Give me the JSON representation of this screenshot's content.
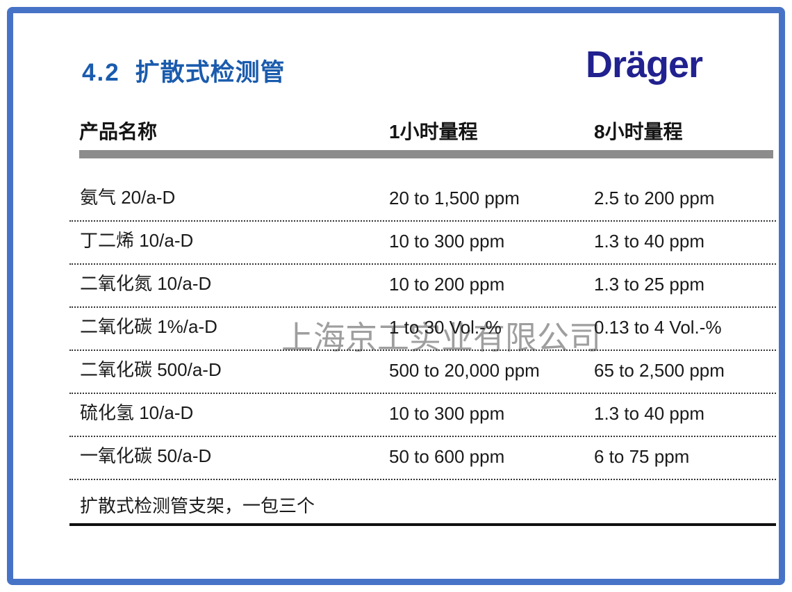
{
  "page": {
    "section_number": "4.2",
    "title": "扩散式检测管",
    "logo_text": "Dräger",
    "watermark": "上海京工实业有限公司"
  },
  "colors": {
    "frame_blue": "#4773c6",
    "title_blue": "#1a5bad",
    "logo_navy": "#21218f",
    "header_bar_gray": "#8c8c8c",
    "watermark_gray": "#9e9e9e"
  },
  "table": {
    "columns": [
      "产品名称",
      "1小时量程",
      "8小时量程"
    ],
    "rows": [
      {
        "name": "氨气 20/a-D",
        "range_1h": "20 to 1,500 ppm",
        "range_8h": "2.5 to 200 ppm"
      },
      {
        "name": "丁二烯 10/a-D",
        "range_1h": "10 to 300 ppm",
        "range_8h": "1.3 to 40 ppm"
      },
      {
        "name": "二氧化氮 10/a-D",
        "range_1h": "10 to 200 ppm",
        "range_8h": "1.3 to 25 ppm"
      },
      {
        "name": "二氧化碳 1%/a-D",
        "range_1h": "1 to 30 Vol.-%",
        "range_8h": "0.13 to 4 Vol.-%"
      },
      {
        "name": "二氧化碳 500/a-D",
        "range_1h": "500 to 20,000 ppm",
        "range_8h": "65 to 2,500 ppm"
      },
      {
        "name": "硫化氢 10/a-D",
        "range_1h": "10 to 300 ppm",
        "range_8h": "1.3 to 40 ppm"
      },
      {
        "name": "一氧化碳 50/a-D",
        "range_1h": "50 to 600 ppm",
        "range_8h": "6 to 75 ppm"
      }
    ],
    "footer_row": "扩散式检测管支架，一包三个"
  }
}
